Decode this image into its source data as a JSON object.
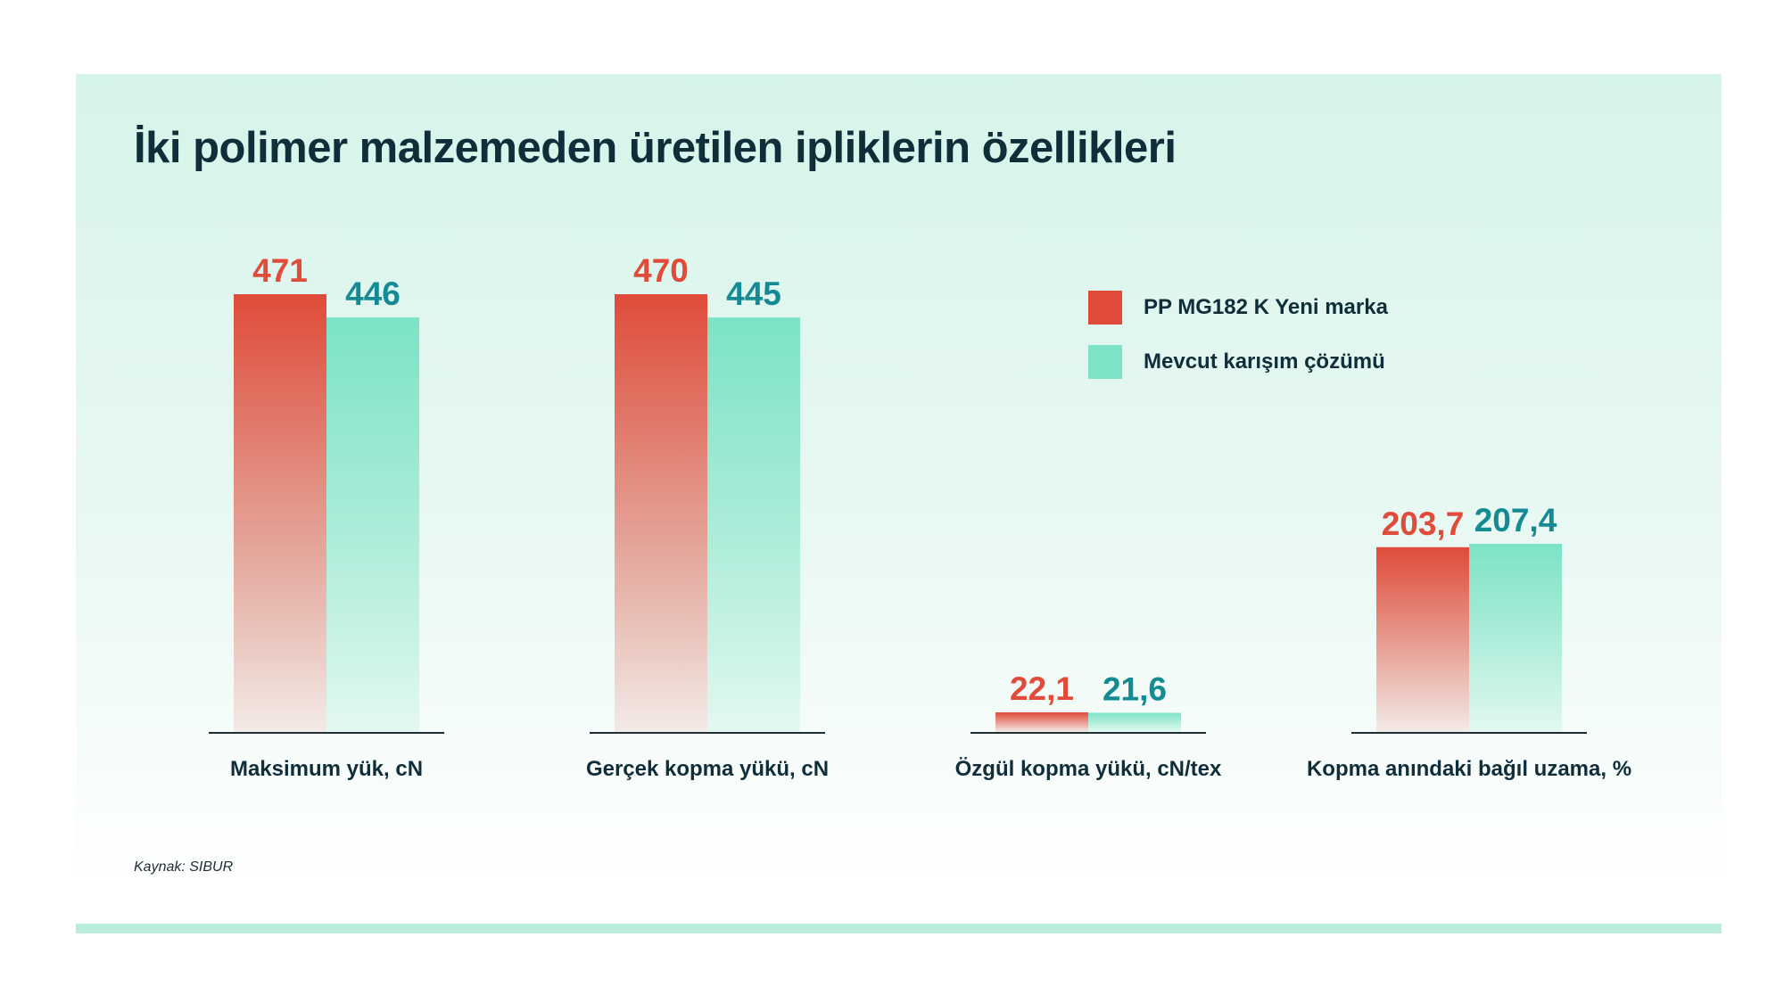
{
  "colors": {
    "series1": "#e04b3a",
    "series1_value_text": "#e04b3a",
    "series2": "#7de3c6",
    "series2_value_text": "#138a94",
    "axis": "#1c2e36",
    "text": "#0f2e3a"
  },
  "chart_data": {
    "type": "bar",
    "title": "İki polimer malzemeden üretilen ipliklerin özellikleri",
    "legend_position": "top-right",
    "grid": false,
    "categories": [
      "Maksimum yük, cN",
      "Gerçek kopma yükü, cN",
      "Özgül kopma yükü, cN/tex",
      "Kopma anındaki bağıl uzama, %"
    ],
    "value_labels": [
      [
        "471",
        "446"
      ],
      [
        "470",
        "445"
      ],
      [
        "22,1",
        "21,6"
      ],
      [
        "203,7",
        "207,4"
      ]
    ],
    "series": [
      {
        "name": "PP MG182 K Yeni marka",
        "values": [
          471,
          470,
          22.1,
          203.7
        ]
      },
      {
        "name": "Mevcut karışım çözümü",
        "values": [
          446,
          445,
          21.6,
          207.4
        ]
      }
    ],
    "source": "Kaynak: SIBUR"
  }
}
